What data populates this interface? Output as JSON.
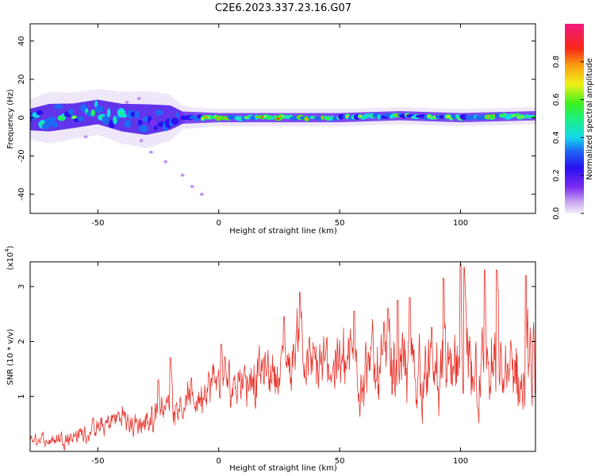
{
  "title": "C2E6.2023.337.23.16.G07",
  "colors": {
    "snr_line": "#e8322a",
    "axis": "#000000"
  },
  "chart_data": [
    {
      "type": "heatmap",
      "xlabel": "Height of straight line (km)",
      "ylabel": "Frequency (Hz)",
      "xlim": [
        -78,
        131
      ],
      "ylim": [
        -50,
        49
      ],
      "xticks": [
        -50,
        0,
        50,
        100
      ],
      "yticks": [
        -40,
        -20,
        0,
        20,
        40
      ],
      "colorbar": {
        "label": "Normalized spectral amplitude",
        "range": [
          0,
          1
        ],
        "ticks": [
          0.0,
          0.2,
          0.4,
          0.6,
          0.8
        ],
        "colormap": "spectral (purple-blue-cyan-green-yellow-orange-red-magenta)"
      },
      "trace": [
        {
          "x": -78,
          "freq": -1,
          "spread": 7,
          "amp": 0.45
        },
        {
          "x": -70,
          "freq": 0,
          "spread": 9,
          "amp": 0.55
        },
        {
          "x": -60,
          "freq": 1,
          "spread": 8,
          "amp": 0.6
        },
        {
          "x": -50,
          "freq": 3,
          "spread": 8,
          "amp": 0.55
        },
        {
          "x": -40,
          "freq": 0,
          "spread": 9,
          "amp": 0.5
        },
        {
          "x": -30,
          "freq": -1,
          "spread": 10,
          "amp": 0.45
        },
        {
          "x": -20,
          "freq": 0,
          "spread": 8,
          "amp": 0.4
        },
        {
          "x": -15,
          "freq": 0,
          "spread": 4,
          "amp": 0.45
        },
        {
          "x": 0,
          "freq": 0,
          "spread": 3,
          "amp": 0.75
        },
        {
          "x": 25,
          "freq": 0,
          "spread": 3,
          "amp": 0.75
        },
        {
          "x": 50,
          "freq": 0,
          "spread": 3,
          "amp": 0.65
        },
        {
          "x": 75,
          "freq": 1,
          "spread": 3,
          "amp": 0.7
        },
        {
          "x": 100,
          "freq": 0,
          "spread": 3,
          "amp": 0.65
        },
        {
          "x": 131,
          "freq": 1,
          "spread": 3,
          "amp": 0.7
        }
      ],
      "outliers": [
        {
          "x": -32,
          "freq": -12
        },
        {
          "x": -28,
          "freq": -18
        },
        {
          "x": -22,
          "freq": -23
        },
        {
          "x": -15,
          "freq": -30
        },
        {
          "x": -11,
          "freq": -36
        },
        {
          "x": -7,
          "freq": -40
        },
        {
          "x": -33,
          "freq": 10
        },
        {
          "x": -38,
          "freq": 8
        },
        {
          "x": -55,
          "freq": -10
        }
      ]
    },
    {
      "type": "line",
      "xlabel": "Height of straight line (km)",
      "ylabel": "SNR (10 * v/v)",
      "y_scale_label": "(x10",
      "y_scale_exponent": "4",
      "xlim": [
        -78,
        131
      ],
      "ylim": [
        0,
        3.45
      ],
      "xticks": [
        -50,
        0,
        50,
        100
      ],
      "yticks": [
        1,
        2,
        3
      ],
      "series": [
        {
          "values": [
            {
              "x": -78,
              "y": 0.18
            },
            {
              "x": -70,
              "y": 0.22
            },
            {
              "x": -60,
              "y": 0.28
            },
            {
              "x": -50,
              "y": 0.4
            },
            {
              "x": -45,
              "y": 0.55
            },
            {
              "x": -40,
              "y": 0.65
            },
            {
              "x": -35,
              "y": 0.45
            },
            {
              "x": -30,
              "y": 0.5
            },
            {
              "x": -25,
              "y": 0.8
            },
            {
              "x": -20,
              "y": 0.85
            },
            {
              "x": -15,
              "y": 0.9
            },
            {
              "x": -10,
              "y": 0.95
            },
            {
              "x": -5,
              "y": 1.1
            },
            {
              "x": 0,
              "y": 1.3
            },
            {
              "x": 5,
              "y": 1.2
            },
            {
              "x": 10,
              "y": 1.4
            },
            {
              "x": 15,
              "y": 1.35
            },
            {
              "x": 20,
              "y": 1.45
            },
            {
              "x": 25,
              "y": 1.5
            },
            {
              "x": 30,
              "y": 1.55
            },
            {
              "x": 33,
              "y": 2.3
            },
            {
              "x": 36,
              "y": 1.6
            },
            {
              "x": 40,
              "y": 1.5
            },
            {
              "x": 45,
              "y": 1.55
            },
            {
              "x": 50,
              "y": 1.7
            },
            {
              "x": 55,
              "y": 1.6
            },
            {
              "x": 60,
              "y": 1.5
            },
            {
              "x": 65,
              "y": 1.55
            },
            {
              "x": 70,
              "y": 1.6
            },
            {
              "x": 75,
              "y": 1.4
            },
            {
              "x": 80,
              "y": 1.5
            },
            {
              "x": 85,
              "y": 1.45
            },
            {
              "x": 90,
              "y": 1.4
            },
            {
              "x": 95,
              "y": 1.35
            },
            {
              "x": 100,
              "y": 1.45
            },
            {
              "x": 105,
              "y": 1.5
            },
            {
              "x": 110,
              "y": 1.35
            },
            {
              "x": 115,
              "y": 1.4
            },
            {
              "x": 120,
              "y": 1.35
            },
            {
              "x": 125,
              "y": 1.3
            },
            {
              "x": 131,
              "y": 1.4
            }
          ],
          "noise_amplitude": [
            {
              "x": -78,
              "a": 0.15
            },
            {
              "x": -30,
              "a": 0.35
            },
            {
              "x": 0,
              "a": 0.6
            },
            {
              "x": 40,
              "a": 0.8
            },
            {
              "x": 60,
              "a": 1.0
            },
            {
              "x": 90,
              "a": 1.1
            },
            {
              "x": 131,
              "a": 1.15
            }
          ],
          "peaks": [
            {
              "x": 33.5,
              "y": 2.9
            },
            {
              "x": 56,
              "y": 2.55
            },
            {
              "x": 70,
              "y": 2.6
            },
            {
              "x": 74,
              "y": 2.75
            },
            {
              "x": 79,
              "y": 2.8
            },
            {
              "x": 93,
              "y": 3.15
            },
            {
              "x": 100,
              "y": 3.4
            },
            {
              "x": 101.5,
              "y": 3.35
            },
            {
              "x": 110,
              "y": 3.3
            },
            {
              "x": 115,
              "y": 3.3
            },
            {
              "x": 127,
              "y": 3.2
            },
            {
              "x": -25,
              "y": 1.3
            },
            {
              "x": -20,
              "y": 1.7
            },
            {
              "x": 1,
              "y": 1.95
            },
            {
              "x": 27,
              "y": 2.45
            }
          ]
        }
      ]
    }
  ]
}
